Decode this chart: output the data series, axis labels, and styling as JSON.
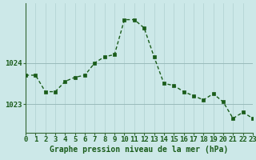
{
  "x": [
    0,
    1,
    2,
    3,
    4,
    5,
    6,
    7,
    8,
    9,
    10,
    11,
    12,
    13,
    14,
    15,
    16,
    17,
    18,
    19,
    20,
    21,
    22,
    23
  ],
  "y": [
    1023.7,
    1023.7,
    1023.3,
    1023.3,
    1023.55,
    1023.65,
    1023.7,
    1024.0,
    1024.15,
    1024.2,
    1025.05,
    1025.05,
    1024.85,
    1024.15,
    1023.5,
    1023.45,
    1023.3,
    1023.2,
    1023.1,
    1023.25,
    1023.05,
    1022.65,
    1022.8,
    1022.65
  ],
  "line_color": "#1a5c1a",
  "marker_color": "#1a5c1a",
  "bg_color": "#cce8e8",
  "grid_color_v": "#b0d0d0",
  "grid_color_h": "#99bbbb",
  "xlabel": "Graphe pression niveau de la mer (hPa)",
  "xlabel_color": "#1a5c1a",
  "ylabel_ticks": [
    1023,
    1024
  ],
  "ylim": [
    1022.3,
    1025.45
  ],
  "xlim": [
    0,
    23
  ],
  "tick_label_color": "#1a5c1a",
  "spine_color": "#336633",
  "axis_fontsize": 6.5,
  "marker_size": 2.5,
  "line_width": 1.0
}
